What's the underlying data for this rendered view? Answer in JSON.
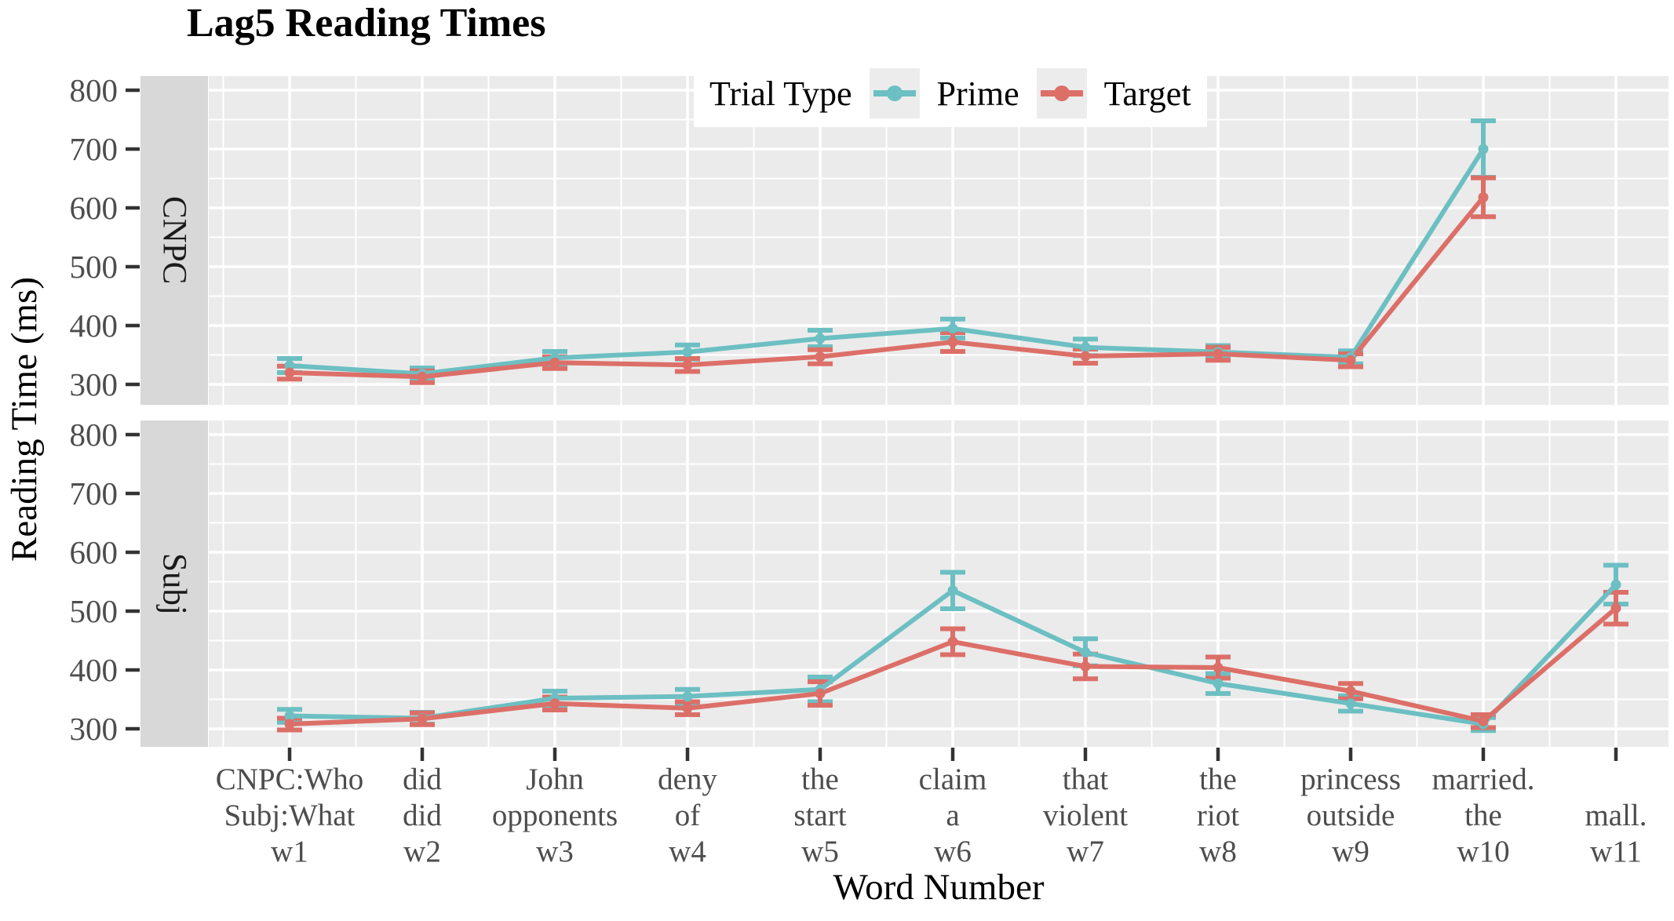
{
  "chart_data": {
    "type": "line",
    "title": "Lag5 Reading Times",
    "xlabel": "Word Number",
    "ylabel": "Reading Time (ms)",
    "legend_title": "Trial Type",
    "legend_position": "top-inside",
    "grid": true,
    "panel_bg": "#EBEBEB",
    "strip_bg": "#D8D8D8",
    "tick_label_color": "#4D4D4D",
    "series_meta": [
      {
        "name": "Prime",
        "color": "#6CBFC2"
      },
      {
        "name": "Target",
        "color": "#DC6F68"
      }
    ],
    "y_ticks": [
      800,
      700,
      600,
      500,
      400,
      300
    ],
    "ylim": [
      280,
      820
    ],
    "x_tick_lines": [
      [
        "CNPC:Who",
        "Subj:What",
        "w1"
      ],
      [
        "did",
        "did",
        "w2"
      ],
      [
        "John",
        "opponents",
        "w3"
      ],
      [
        "deny",
        "of",
        "w4"
      ],
      [
        "the",
        "start",
        "w5"
      ],
      [
        "claim",
        "a",
        "w6"
      ],
      [
        "that",
        "violent",
        "w7"
      ],
      [
        "the",
        "riot",
        "w8"
      ],
      [
        "princess",
        "outside",
        "w9"
      ],
      [
        "married.",
        "the",
        "w10"
      ],
      [
        "",
        "mall.",
        "w11"
      ]
    ],
    "facets": [
      {
        "label": "CNPC",
        "series": [
          {
            "name": "Prime",
            "mean": [
              332,
              318,
              345,
              355,
              378,
              395,
              363,
              355,
              346,
              700,
              null
            ],
            "se": [
              12,
              10,
              11,
              12,
              14,
              16,
              14,
              11,
              11,
              48,
              null
            ]
          },
          {
            "name": "Target",
            "mean": [
              320,
              313,
              337,
              333,
              347,
              372,
              348,
              352,
              341,
              618,
              null
            ],
            "se": [
              11,
              10,
              10,
              11,
              12,
              16,
              12,
              11,
              11,
              33,
              null
            ]
          }
        ]
      },
      {
        "label": "Subj",
        "series": [
          {
            "name": "Prime",
            "mean": [
              322,
              318,
              352,
              355,
              367,
              535,
              430,
              377,
              343,
              308,
              545
            ],
            "se": [
              11,
              10,
              12,
              12,
              21,
              31,
              23,
              17,
              13,
              11,
              33
            ]
          },
          {
            "name": "Target",
            "mean": [
              308,
              317,
              343,
              335,
              360,
              448,
              406,
              404,
              364,
              313,
              505
            ],
            "se": [
              10,
              10,
              11,
              11,
              20,
              22,
              21,
              18,
              13,
              11,
              27
            ]
          }
        ]
      }
    ]
  }
}
